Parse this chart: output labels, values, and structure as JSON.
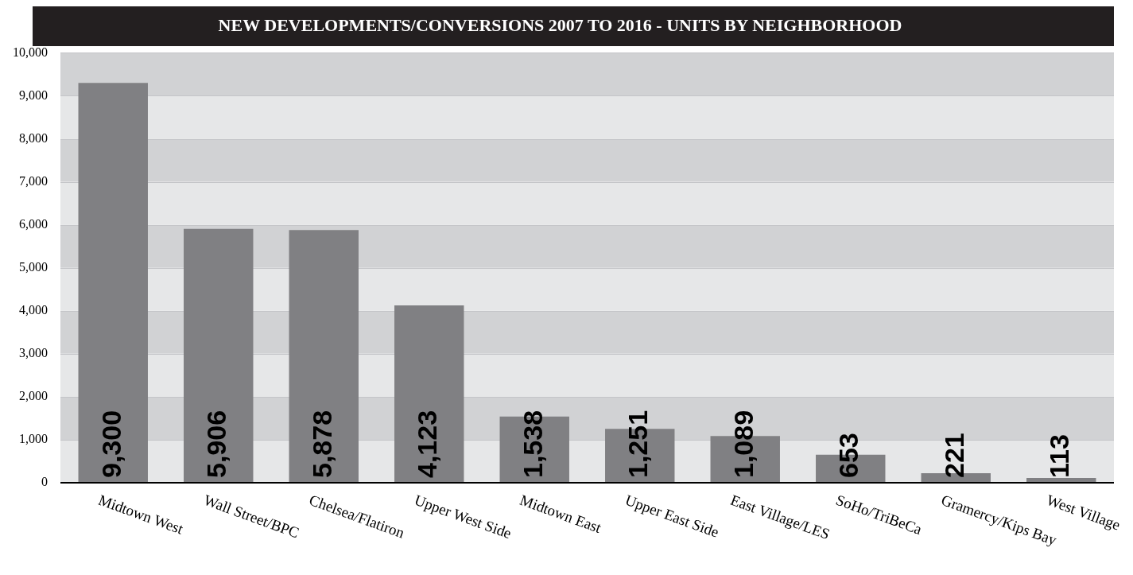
{
  "chart_data": {
    "type": "bar",
    "title": "NEW DEVELOPMENTS/CONVERSIONS 2007 TO 2016 - UNITS BY NEIGHBORHOOD",
    "categories": [
      "Midtown West",
      "Wall Street/BPC",
      "Chelsea/Flatiron",
      "Upper West Side",
      "Midtown East",
      "Upper East Side",
      "East Village/LES",
      "SoHo/TriBeCa",
      "Gramercy/Kips Bay",
      "West Village"
    ],
    "values": [
      9300,
      5906,
      5878,
      4123,
      1538,
      1251,
      1089,
      653,
      221,
      113
    ],
    "value_labels": [
      "9,300",
      "5,906",
      "5,878",
      "4,123",
      "1,538",
      "1,251",
      "1,089",
      "653",
      "221",
      "113"
    ],
    "color": "#808083",
    "ylim": [
      0,
      10000
    ],
    "yticks": [
      0,
      {
        "value": 1000,
        "label": "1,000"
      },
      {
        "value": 2000,
        "label": "2,000"
      },
      {
        "value": 3000,
        "label": "3,000"
      },
      {
        "value": 4000,
        "label": "4,000"
      },
      {
        "value": 5000,
        "label": "5,000"
      },
      {
        "value": 6000,
        "label": "6,000"
      },
      {
        "value": 7000,
        "label": "7,000"
      },
      {
        "value": 8000,
        "label": "8,000"
      },
      {
        "value": 9000,
        "label": "9,000"
      },
      {
        "value": 10000,
        "label": "10,000"
      }
    ],
    "grid": "y",
    "legend": false
  }
}
